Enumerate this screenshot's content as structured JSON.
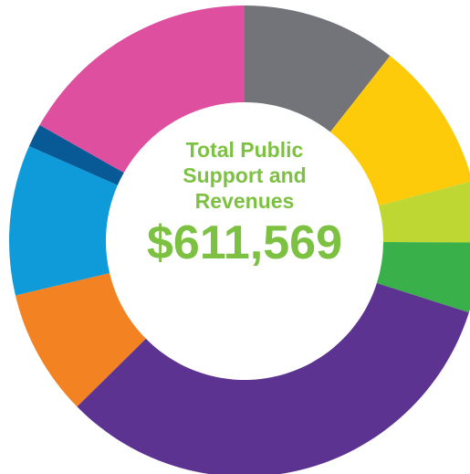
{
  "chart_data": {
    "type": "donut",
    "title": "Total Public Support and Revenues",
    "total": "$611,569",
    "values": [
      10.6,
      10.3,
      4.2,
      4.8,
      32.7,
      8.7,
      10.3,
      1.6,
      16.8
    ],
    "colors": [
      "#737479",
      "#fdcb0a",
      "#bfd733",
      "#39b04a",
      "#5d3391",
      "#f28222",
      "#0f9ad9",
      "#085a96",
      "#de4f9f"
    ]
  }
}
